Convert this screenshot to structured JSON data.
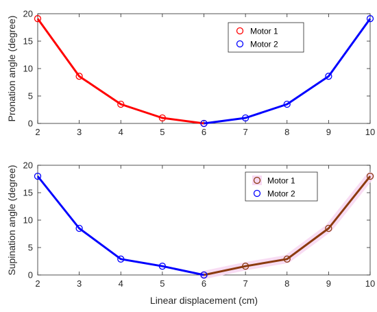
{
  "chart_data": [
    {
      "type": "line",
      "ylabel": "Pronation angle (degree)",
      "xlabel": "",
      "xlim": [
        2,
        10
      ],
      "ylim": [
        0,
        20
      ],
      "xticks": [
        "2",
        "3",
        "4",
        "5",
        "6",
        "7",
        "8",
        "9",
        "10"
      ],
      "yticks": [
        "0",
        "5",
        "10",
        "15",
        "20"
      ],
      "grid": false,
      "legend_position": "top-right",
      "series": [
        {
          "name": "Motor 1",
          "color": "#ff0000",
          "marker_color": "#ff0000",
          "x": [
            2,
            3,
            4,
            5,
            6
          ],
          "y": [
            19.1,
            8.6,
            3.5,
            1.0,
            0.0
          ]
        },
        {
          "name": "Motor 2",
          "color": "#0000ff",
          "marker_color": "#0000ff",
          "x": [
            6,
            7,
            8,
            9,
            10
          ],
          "y": [
            0.0,
            1.0,
            3.5,
            8.6,
            19.1
          ]
        }
      ]
    },
    {
      "type": "line",
      "ylabel": "Supination angle (degree)",
      "xlabel": "Linear displacement (cm)",
      "xlim": [
        2,
        10
      ],
      "ylim": [
        0,
        20
      ],
      "xticks": [
        "2",
        "3",
        "4",
        "5",
        "6",
        "7",
        "8",
        "9",
        "10"
      ],
      "yticks": [
        "0",
        "5",
        "10",
        "15",
        "20"
      ],
      "grid": false,
      "legend_position": "top-right",
      "series": [
        {
          "name": "Motor 1",
          "color": "#8b3a0e",
          "marker_color": "#8b3a0e",
          "highlight_color": "#f7d8f2",
          "x": [
            6,
            7,
            8,
            9,
            10
          ],
          "y": [
            0.0,
            1.6,
            2.9,
            8.5,
            18.0
          ]
        },
        {
          "name": "Motor 2",
          "color": "#0000ff",
          "marker_color": "#0000ff",
          "x": [
            2,
            3,
            4,
            5,
            6
          ],
          "y": [
            18.0,
            8.5,
            2.9,
            1.6,
            0.0
          ]
        }
      ]
    }
  ]
}
